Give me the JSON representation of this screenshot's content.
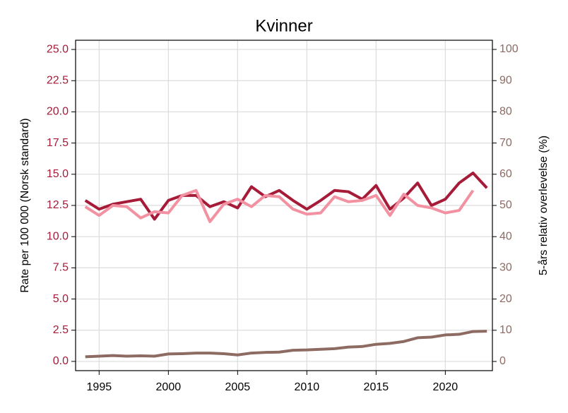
{
  "chart_data": {
    "type": "line",
    "title": "Kvinner",
    "ylabel": "Rate per 100 000 (Norsk standard)",
    "y2label": "5-års relativ overlevelse (%)",
    "x": [
      1994,
      1995,
      1996,
      1997,
      1998,
      1999,
      2000,
      2001,
      2002,
      2003,
      2004,
      2005,
      2006,
      2007,
      2008,
      2009,
      2010,
      2011,
      2012,
      2013,
      2014,
      2015,
      2016,
      2017,
      2018,
      2019,
      2020,
      2021,
      2022,
      2023
    ],
    "series": [
      {
        "color": "#a51b38",
        "axis": "y",
        "values": [
          12.9,
          12.2,
          12.6,
          12.8,
          13.0,
          11.4,
          12.9,
          13.3,
          13.3,
          12.4,
          12.8,
          12.3,
          14.0,
          13.2,
          13.7,
          12.9,
          12.2,
          12.9,
          13.7,
          13.6,
          13.0,
          14.1,
          12.2,
          13.1,
          14.3,
          12.5,
          13.0,
          14.3,
          15.1,
          13.9
        ]
      },
      {
        "color": "#f291a1",
        "axis": "y",
        "values": [
          12.4,
          11.7,
          12.5,
          12.4,
          11.5,
          12.0,
          11.9,
          13.3,
          13.7,
          11.2,
          12.6,
          13.0,
          12.4,
          13.3,
          13.2,
          12.2,
          11.8,
          11.9,
          13.2,
          12.8,
          12.9,
          13.3,
          11.7,
          13.4,
          12.5,
          12.3,
          11.9,
          12.1,
          13.7,
          null
        ]
      },
      {
        "color": "#8d6b63",
        "axis": "y2",
        "values": [
          1.5,
          1.7,
          1.9,
          1.7,
          1.8,
          1.7,
          2.4,
          2.5,
          2.7,
          2.7,
          2.5,
          2.1,
          2.7,
          2.9,
          3.0,
          3.6,
          3.7,
          3.9,
          4.1,
          4.6,
          4.8,
          5.5,
          5.8,
          6.4,
          7.6,
          7.8,
          8.5,
          8.7,
          9.6,
          9.7
        ]
      }
    ],
    "xlim": [
      1993.3,
      2023.4
    ],
    "xticks": [
      1995,
      2000,
      2005,
      2010,
      2015,
      2020
    ],
    "ylim": [
      -0.74,
      25.74
    ],
    "yticks": [
      {
        "value": 0,
        "label": "0.0"
      },
      2.5,
      {
        "value": 5,
        "label": "5.0"
      },
      7.5,
      {
        "value": 10,
        "label": "10.0"
      },
      12.5,
      {
        "value": 15,
        "label": "15.0"
      },
      17.5,
      {
        "value": 20,
        "label": "20.0"
      },
      22.5,
      {
        "value": 25,
        "label": "25.0"
      }
    ],
    "y2lim": [
      -2.94,
      102.94
    ],
    "y2ticks": [
      0,
      10,
      20,
      30,
      40,
      50,
      60,
      70,
      80,
      90,
      100
    ],
    "ytick_color": "#a51b38",
    "y2tick_color": "#8d6b63",
    "grid": true
  }
}
